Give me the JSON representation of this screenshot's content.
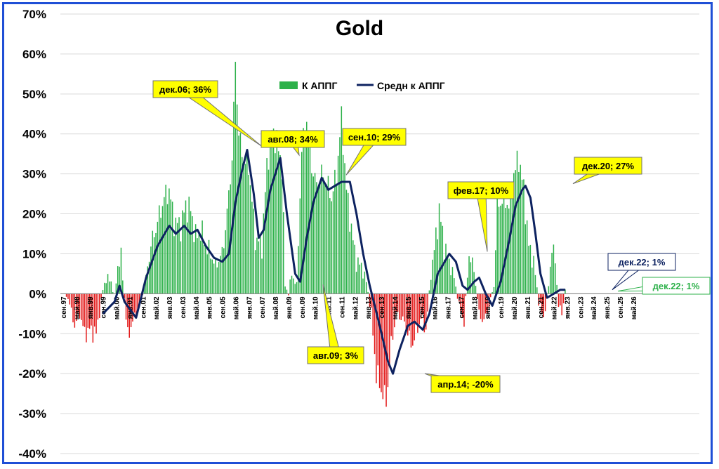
{
  "chart_data": {
    "type": "bar",
    "title": "Gold",
    "ylim": [
      -0.4,
      0.7
    ],
    "yticks": [
      "70%",
      "60%",
      "50%",
      "40%",
      "30%",
      "20%",
      "10%",
      "0%",
      "-10%",
      "-20%",
      "-30%",
      "-40%"
    ],
    "x_tick_labels": [
      "сен.97",
      "май.98",
      "янв.99",
      "сен.99",
      "май.00",
      "янв.01",
      "сен.01",
      "май.02",
      "янв.03",
      "сен.03",
      "май.04",
      "янв.05",
      "сен.05",
      "май.06",
      "янв.07",
      "сен.07",
      "май.08",
      "янв.09",
      "сен.09",
      "май.10",
      "янв.11",
      "сен.11",
      "май.12",
      "янв.13",
      "сен.13",
      "май.14",
      "янв.15",
      "сен.15",
      "май.16",
      "янв.17",
      "сен.17",
      "май.18",
      "янв.19",
      "сен.19",
      "май.20",
      "янв.21",
      "сен.21",
      "май.22",
      "янв.23",
      "сен.23",
      "май.24",
      "янв.25",
      "сен.25",
      "май.26"
    ],
    "legend": [
      "К АППГ",
      "Средн к АППГ"
    ],
    "legend_position": "top-center",
    "colors": {
      "positive": "#2db14a",
      "negative": "#e31a1a",
      "line": "#0d2260",
      "frame": "#1f4fd6",
      "callout_fill": "#ffff00"
    },
    "series": [
      {
        "name": "К АППГ",
        "kind": "monthly-bars",
        "start": "сен.97",
        "anchors": [
          [
            "сен.97",
            0
          ],
          [
            "дек.97",
            -0.01
          ],
          [
            "апр.98",
            -0.08
          ],
          [
            "июл.98",
            -0.05
          ],
          [
            "окт.98",
            -0.1
          ],
          [
            "янв.99",
            -0.09
          ],
          [
            "май.99",
            -0.1
          ],
          [
            "сен.99",
            0.01
          ],
          [
            "ноя.99",
            0.04
          ],
          [
            "фев.00",
            0.03
          ],
          [
            "апр.00",
            -0.01
          ],
          [
            "июн.00",
            0.07
          ],
          [
            "авг.00",
            0.09
          ],
          [
            "окт.00",
            -0.01
          ],
          [
            "дек.00",
            -0.11
          ],
          [
            "фев.01",
            -0.08
          ],
          [
            "май.01",
            -0.05
          ],
          [
            "авг.01",
            -0.02
          ],
          [
            "ноя.01",
            0.04
          ],
          [
            "фев.02",
            0.12
          ],
          [
            "июн.02",
            0.18
          ],
          [
            "окт.02",
            0.24
          ],
          [
            "янв.03",
            0.26
          ],
          [
            "апр.03",
            0.18
          ],
          [
            "авг.03",
            0.17
          ],
          [
            "ноя.03",
            0.22
          ],
          [
            "фев.04",
            0.21
          ],
          [
            "май.04",
            0.14
          ],
          [
            "авг.04",
            0.16
          ],
          [
            "ноя.04",
            0.12
          ],
          [
            "фев.05",
            0.1
          ],
          [
            "май.05",
            0.07
          ],
          [
            "сен.05",
            0.1
          ],
          [
            "дек.05",
            0.2
          ],
          [
            "мар.06",
            0.34
          ],
          [
            "май.06",
            0.58
          ],
          [
            "июл.06",
            0.4
          ],
          [
            "окт.06",
            0.33
          ],
          [
            "янв.07",
            0.32
          ],
          [
            "май.07",
            0.14
          ],
          [
            "сен.07",
            0.12
          ],
          [
            "дек.07",
            0.32
          ],
          [
            "мар.08",
            0.41
          ],
          [
            "июн.08",
            0.38
          ],
          [
            "сен.08",
            0.32
          ],
          [
            "ноя.08",
            0.02
          ],
          [
            "янв.09",
            0.0
          ],
          [
            "мар.09",
            0.05
          ],
          [
            "июн.09",
            0.02
          ],
          [
            "сен.09",
            0.36
          ],
          [
            "дек.09",
            0.44
          ],
          [
            "мар.10",
            0.32
          ],
          [
            "июн.10",
            0.27
          ],
          [
            "сен.10",
            0.3
          ],
          [
            "дек.10",
            0.28
          ],
          [
            "мар.11",
            0.24
          ],
          [
            "июн.11",
            0.3
          ],
          [
            "сен.11",
            0.44
          ],
          [
            "дек.11",
            0.26
          ],
          [
            "мар.12",
            0.16
          ],
          [
            "июн.12",
            0.08
          ],
          [
            "сен.12",
            0.07
          ],
          [
            "дек.12",
            0.03
          ],
          [
            "мар.13",
            -0.05
          ],
          [
            "июн.13",
            -0.2
          ],
          [
            "сен.13",
            -0.24
          ],
          [
            "дек.13",
            -0.27
          ],
          [
            "мар.14",
            -0.13
          ],
          [
            "июн.14",
            -0.05
          ],
          [
            "сен.14",
            -0.06
          ],
          [
            "дек.14",
            -0.08
          ],
          [
            "мар.15",
            -0.13
          ],
          [
            "июн.15",
            -0.1
          ],
          [
            "сен.15",
            -0.06
          ],
          [
            "дек.15",
            -0.09
          ],
          [
            "мар.16",
            0.05
          ],
          [
            "июн.16",
            0.14
          ],
          [
            "авг.16",
            0.21
          ],
          [
            "ноя.16",
            0.12
          ],
          [
            "фев.17",
            0.08
          ],
          [
            "май.17",
            0.04
          ],
          [
            "авг.17",
            -0.03
          ],
          [
            "ноя.17",
            -0.07
          ],
          [
            "фев.18",
            0.1
          ],
          [
            "май.18",
            0.06
          ],
          [
            "авг.18",
            -0.05
          ],
          [
            "ноя.18",
            -0.07
          ],
          [
            "фев.19",
            -0.03
          ],
          [
            "май.19",
            0.02
          ],
          [
            "июл.19",
            0.22
          ],
          [
            "ноя.19",
            0.24
          ],
          [
            "фев.20",
            0.22
          ],
          [
            "май.20",
            0.3
          ],
          [
            "авг.20",
            0.34
          ],
          [
            "ноя.20",
            0.26
          ],
          [
            "фев.21",
            0.12
          ],
          [
            "май.21",
            0.08
          ],
          [
            "авг.21",
            -0.02
          ],
          [
            "ноя.21",
            -0.06
          ],
          [
            "фев.22",
            0.02
          ],
          [
            "апр.22",
            0.12
          ],
          [
            "июн.22",
            0.08
          ],
          [
            "авг.22",
            -0.03
          ],
          [
            "окт.22",
            -0.05
          ],
          [
            "дек.22",
            0.01
          ]
        ]
      },
      {
        "name": "Средн к АППГ",
        "kind": "line",
        "points": [
          [
            "сен.99",
            -0.05
          ],
          [
            "апр.00",
            -0.02
          ],
          [
            "июл.00",
            0.02
          ],
          [
            "окт.00",
            -0.02
          ],
          [
            "май.01",
            -0.06
          ],
          [
            "ноя.01",
            0.04
          ],
          [
            "июн.02",
            0.12
          ],
          [
            "янв.03",
            0.17
          ],
          [
            "май.03",
            0.15
          ],
          [
            "окт.03",
            0.17
          ],
          [
            "фев.04",
            0.15
          ],
          [
            "июн.04",
            0.16
          ],
          [
            "ноя.04",
            0.12
          ],
          [
            "апр.05",
            0.09
          ],
          [
            "сен.05",
            0.08
          ],
          [
            "янв.06",
            0.1
          ],
          [
            "май.06",
            0.23
          ],
          [
            "сен.06",
            0.31
          ],
          [
            "дек.06",
            0.36
          ],
          [
            "апр.07",
            0.25
          ],
          [
            "июл.07",
            0.14
          ],
          [
            "окт.07",
            0.16
          ],
          [
            "фев.08",
            0.26
          ],
          [
            "авг.08",
            0.34
          ],
          [
            "дек.08",
            0.2
          ],
          [
            "май.09",
            0.05
          ],
          [
            "авг.09",
            0.03
          ],
          [
            "дек.09",
            0.14
          ],
          [
            "апр.10",
            0.23
          ],
          [
            "сен.10",
            0.29
          ],
          [
            "янв.11",
            0.26
          ],
          [
            "май.11",
            0.27
          ],
          [
            "сен.11",
            0.28
          ],
          [
            "фев.12",
            0.28
          ],
          [
            "июн.12",
            0.2
          ],
          [
            "окт.12",
            0.1
          ],
          [
            "фев.13",
            0.02
          ],
          [
            "авг.13",
            -0.08
          ],
          [
            "янв.14",
            -0.17
          ],
          [
            "апр.14",
            -0.2
          ],
          [
            "авг.14",
            -0.14
          ],
          [
            "янв.15",
            -0.08
          ],
          [
            "май.15",
            -0.07
          ],
          [
            "окт.15",
            -0.09
          ],
          [
            "фев.16",
            -0.05
          ],
          [
            "июл.16",
            0.05
          ],
          [
            "фев.17",
            0.1
          ],
          [
            "июн.17",
            0.08
          ],
          [
            "окт.17",
            0.02
          ],
          [
            "янв.18",
            0.01
          ],
          [
            "май.18",
            0.03
          ],
          [
            "авг.18",
            0.04
          ],
          [
            "дек.18",
            0.0
          ],
          [
            "апр.19",
            -0.03
          ],
          [
            "сен.19",
            0.03
          ],
          [
            "фев.20",
            0.13
          ],
          [
            "июн.20",
            0.22
          ],
          [
            "окт.20",
            0.26
          ],
          [
            "дек.20",
            0.27
          ],
          [
            "мар.21",
            0.24
          ],
          [
            "июн.21",
            0.15
          ],
          [
            "сен.21",
            0.05
          ],
          [
            "янв.22",
            -0.01
          ],
          [
            "май.22",
            0.0
          ],
          [
            "сен.22",
            0.01
          ],
          [
            "дек.22",
            0.01
          ]
        ]
      }
    ],
    "annotations": [
      {
        "text": "дек.06; 36%",
        "style": "yellow"
      },
      {
        "text": "авг.08; 34%",
        "style": "yellow"
      },
      {
        "text": "сен.10; 29%",
        "style": "yellow"
      },
      {
        "text": "авг.09; 3%",
        "style": "yellow"
      },
      {
        "text": "апр.14; -20%",
        "style": "yellow"
      },
      {
        "text": "фев.17; 10%",
        "style": "yellow"
      },
      {
        "text": "дек.20; 27%",
        "style": "yellow"
      },
      {
        "text": "дек.22; 1%",
        "style": "navy-outline"
      },
      {
        "text": "дек.22; 1%",
        "style": "green-outline"
      }
    ]
  }
}
